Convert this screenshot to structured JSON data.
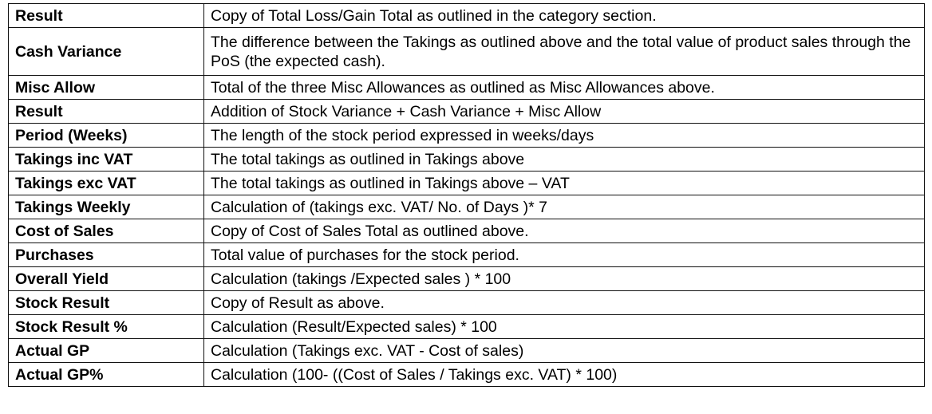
{
  "rows": [
    {
      "term": "Result",
      "description": "Copy of Total Loss/Gain Total as outlined in the category section."
    },
    {
      "term": "Cash Variance",
      "description": "The difference between the Takings as outlined above and the total value of product sales through the PoS (the expected cash)."
    },
    {
      "term": "Misc Allow",
      "description": "Total of the three Misc Allowances as outlined as Misc Allowances above."
    },
    {
      "term": "Result",
      "description": "Addition of Stock Variance + Cash Variance + Misc Allow"
    },
    {
      "term": "Period (Weeks)",
      "description": "The length of the stock period expressed in weeks/days"
    },
    {
      "term": "Takings inc VAT",
      "description": "The total takings as outlined in Takings above"
    },
    {
      "term": "Takings exc VAT",
      "description": "The total takings as outlined in Takings above – VAT"
    },
    {
      "term": "Takings Weekly",
      "description": "Calculation of (takings exc. VAT/ No. of Days )* 7"
    },
    {
      "term": "Cost of Sales",
      "description": "Copy of Cost of Sales Total as outlined above."
    },
    {
      "term": "Purchases",
      "description": "Total value of purchases for the stock period."
    },
    {
      "term": "Overall Yield",
      "description": "Calculation (takings /Expected sales ) * 100"
    },
    {
      "term": "Stock Result",
      "description": "Copy of Result as above."
    },
    {
      "term": "Stock Result %",
      "description": "Calculation (Result/Expected sales) * 100"
    },
    {
      "term": "Actual GP",
      "description": "Calculation (Takings exc. VAT - Cost of sales)"
    },
    {
      "term": "Actual GP%",
      "description": "Calculation (100- ((Cost of Sales / Takings exc. VAT) * 100)"
    }
  ]
}
